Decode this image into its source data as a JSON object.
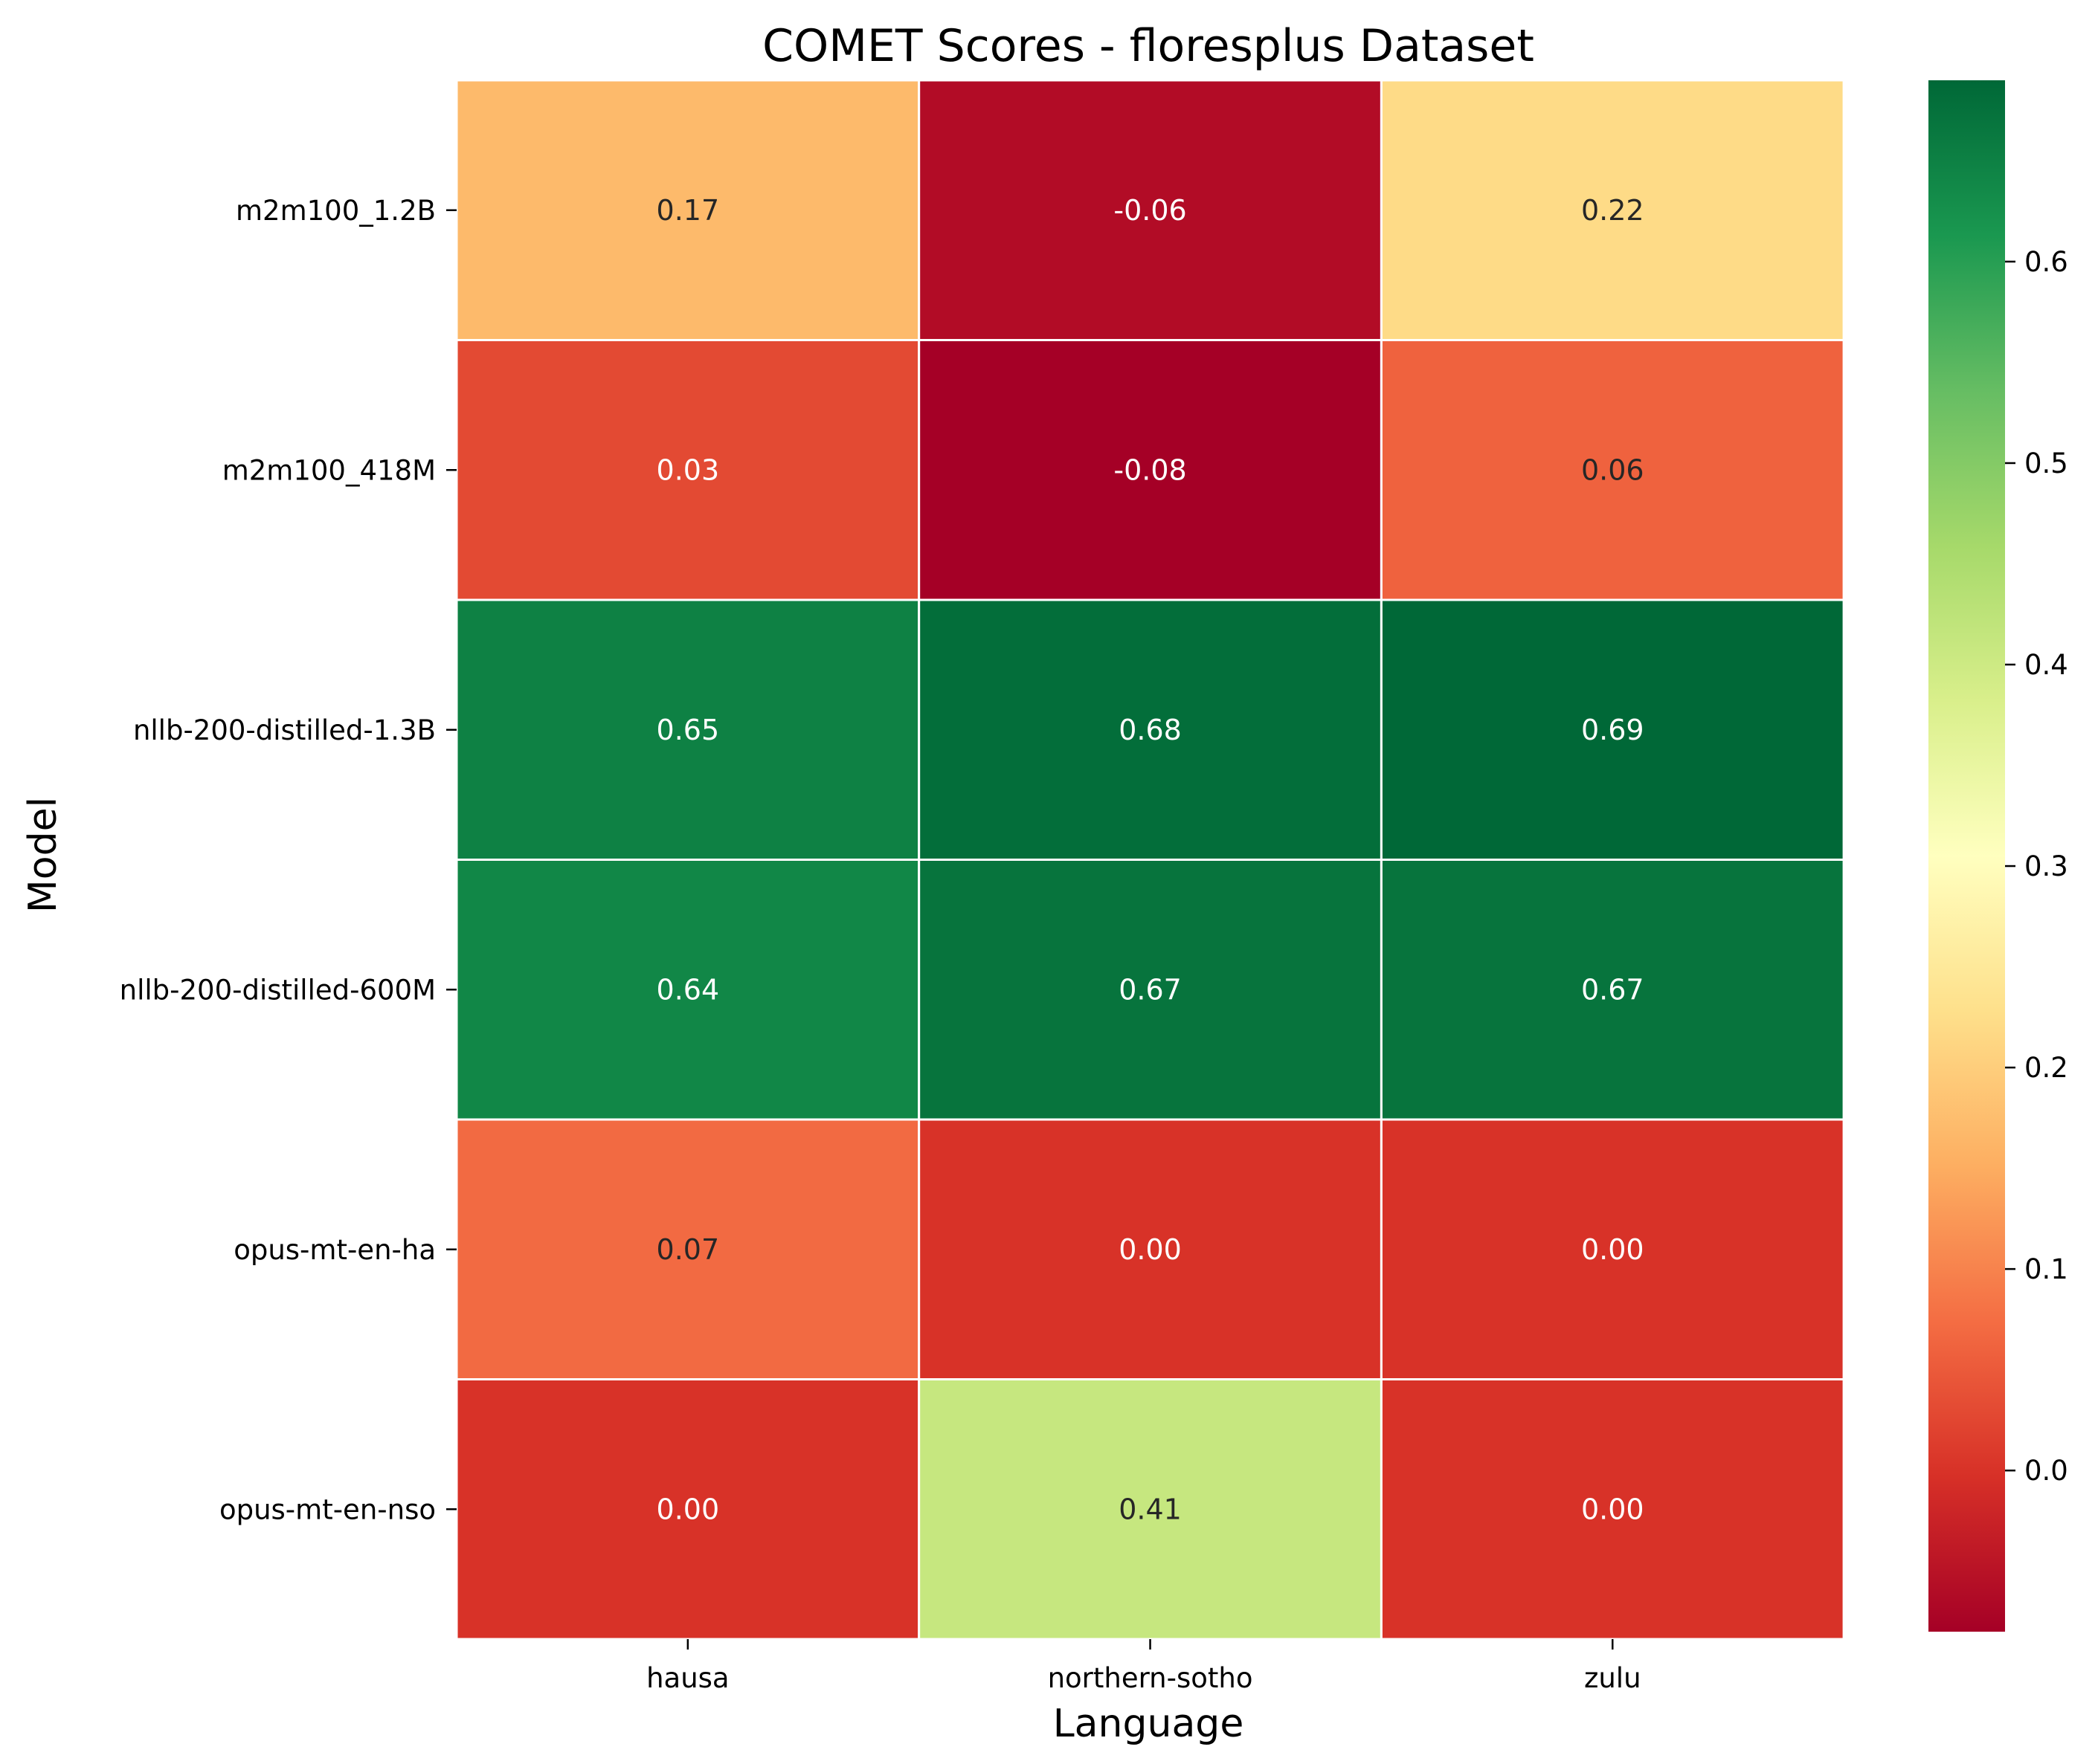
{
  "chart_data": {
    "type": "heatmap",
    "title": "COMET Scores - floresplus Dataset",
    "xlabel": "Language",
    "ylabel": "Model",
    "x": [
      "hausa",
      "northern-sotho",
      "zulu"
    ],
    "y": [
      "m2m100_1.2B",
      "m2m100_418M",
      "nllb-200-distilled-1.3B",
      "nllb-200-distilled-600M",
      "opus-mt-en-ha",
      "opus-mt-en-nso"
    ],
    "values": [
      [
        0.17,
        -0.06,
        0.22
      ],
      [
        0.03,
        -0.08,
        0.06
      ],
      [
        0.65,
        0.68,
        0.69
      ],
      [
        0.64,
        0.67,
        0.67
      ],
      [
        0.07,
        0.0,
        0.0
      ],
      [
        0.0,
        0.41,
        0.0
      ]
    ],
    "labels": [
      [
        "0.17",
        "-0.06",
        "0.22"
      ],
      [
        "0.03",
        "-0.08",
        "0.06"
      ],
      [
        "0.65",
        "0.68",
        "0.69"
      ],
      [
        "0.64",
        "0.67",
        "0.67"
      ],
      [
        "0.07",
        "0.00",
        "0.00"
      ],
      [
        "0.00",
        "0.41",
        "0.00"
      ]
    ],
    "colormap": "RdYlGn",
    "colorbar": {
      "range": [
        -0.08,
        0.69
      ],
      "ticks": [
        0.0,
        0.1,
        0.2,
        0.3,
        0.4,
        0.5,
        0.6
      ],
      "tick_labels": [
        "0.0",
        "0.1",
        "0.2",
        "0.3",
        "0.4",
        "0.5",
        "0.6"
      ]
    },
    "grid": false,
    "cell_border_color": "#ffffff"
  }
}
